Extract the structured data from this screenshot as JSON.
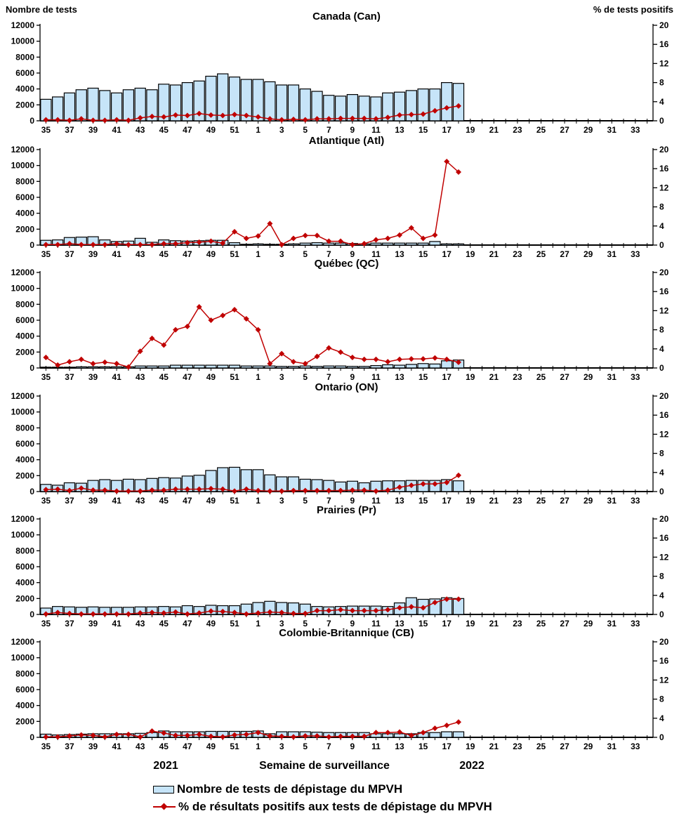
{
  "page": {
    "left_axis_title": "Nombre de tests",
    "right_axis_title": "% de tests positifs",
    "x_axis_title": "Semaine de surveillance",
    "year_left": "2021",
    "year_right": "2022",
    "legend": {
      "bar_label": "Nombre de tests de dépistage du MPVH",
      "line_label": "% de résultats positifs aux tests de dépistage du MPVH"
    }
  },
  "chart_data": {
    "type": "combo",
    "layout": "6 stacked small-multiple panels, bars on left axis + line with diamond markers on right axis",
    "xlabel": "Semaine de surveillance",
    "ylabel_left": "Nombre de tests",
    "ylabel_right": "% de tests positifs",
    "ylim_left": [
      0,
      12000
    ],
    "ylim_right": [
      0,
      20
    ],
    "yticks_left": [
      0,
      2000,
      4000,
      6000,
      8000,
      10000,
      12000
    ],
    "yticks_right": [
      0,
      4,
      8,
      12,
      16,
      20
    ],
    "grid": false,
    "legend_position": "bottom",
    "colors": {
      "bar_fill": "#C6E4F8",
      "bar_border": "#000000",
      "line": "#C00000",
      "text": "#000000"
    },
    "categories": [
      "35",
      "36",
      "37",
      "38",
      "39",
      "40",
      "41",
      "42",
      "43",
      "44",
      "45",
      "46",
      "47",
      "48",
      "49",
      "50",
      "51",
      "52",
      "1",
      "2",
      "3",
      "4",
      "5",
      "6",
      "7",
      "8",
      "9",
      "10",
      "11",
      "12",
      "13",
      "14",
      "15",
      "16",
      "17",
      "18",
      "19",
      "20",
      "21",
      "22",
      "23",
      "24",
      "25",
      "26",
      "27",
      "28",
      "29",
      "30",
      "31",
      "32",
      "33",
      "34"
    ],
    "x_note": "weeks 35-52 are 2021, weeks 1-34 are 2022; data ends at week 18 of 2022",
    "series_labels": {
      "bars": "Nombre de tests de dépistage du MPVH",
      "line": "% de résultats positifs aux tests de dépistage du MPVH"
    },
    "panels": [
      {
        "title": "Canada (Can)",
        "bars": [
          2700,
          3000,
          3500,
          3900,
          4100,
          3800,
          3500,
          3900,
          4100,
          3900,
          4600,
          4500,
          4800,
          5000,
          5600,
          5900,
          5500,
          5200,
          5200,
          4900,
          4500,
          4500,
          4000,
          3700,
          3200,
          3100,
          3300,
          3100,
          3000,
          3500,
          3600,
          3800,
          4000,
          4000,
          4800,
          4700
        ],
        "line": [
          0.2,
          0.2,
          0.1,
          0.4,
          0.1,
          0.1,
          0.2,
          0.1,
          0.6,
          0.9,
          0.8,
          1.2,
          1.1,
          1.5,
          1.2,
          1.1,
          1.3,
          1.1,
          0.8,
          0.4,
          0.2,
          0.3,
          0.2,
          0.4,
          0.4,
          0.5,
          0.5,
          0.5,
          0.4,
          0.7,
          1.2,
          1.3,
          1.4,
          2.1,
          2.7,
          3.1
        ]
      },
      {
        "title": "Atlantique (Atl)",
        "bars": [
          600,
          650,
          950,
          1000,
          1050,
          650,
          450,
          500,
          850,
          350,
          650,
          550,
          500,
          550,
          600,
          600,
          300,
          100,
          150,
          100,
          100,
          150,
          250,
          300,
          250,
          250,
          200,
          150,
          250,
          250,
          250,
          250,
          250,
          450,
          150,
          150
        ],
        "line": [
          0.1,
          0.1,
          0.3,
          0.1,
          0.1,
          0.1,
          0.3,
          0.1,
          0.1,
          0.1,
          0.3,
          0.3,
          0.5,
          0.6,
          0.8,
          0.4,
          2.8,
          1.4,
          1.9,
          4.5,
          0.1,
          1.4,
          2.0,
          2.0,
          0.8,
          0.8,
          0.1,
          0.3,
          1.1,
          1.4,
          2.1,
          3.6,
          1.4,
          2.1,
          17.5,
          15.3
        ]
      },
      {
        "title": "Québec (QC)",
        "bars": [
          100,
          100,
          100,
          150,
          150,
          150,
          150,
          150,
          250,
          250,
          250,
          350,
          350,
          350,
          350,
          350,
          350,
          250,
          250,
          250,
          200,
          200,
          250,
          200,
          250,
          250,
          200,
          200,
          300,
          400,
          350,
          450,
          550,
          500,
          900,
          1000
        ],
        "line": [
          2.2,
          0.6,
          1.3,
          1.8,
          0.9,
          1.2,
          0.9,
          0.2,
          3.5,
          6.2,
          4.8,
          8.0,
          8.7,
          12.8,
          10.0,
          11.0,
          12.2,
          10.3,
          8.0,
          0.9,
          3.0,
          1.3,
          0.9,
          2.4,
          4.2,
          3.3,
          2.2,
          1.8,
          1.8,
          1.3,
          1.8,
          1.9,
          1.9,
          2.1,
          1.8,
          1.2
        ]
      },
      {
        "title": "Ontario (ON)",
        "bars": [
          900,
          800,
          1100,
          1050,
          1400,
          1500,
          1400,
          1550,
          1500,
          1650,
          1750,
          1700,
          1950,
          2050,
          2650,
          3000,
          3050,
          2750,
          2750,
          2100,
          1850,
          1850,
          1550,
          1500,
          1400,
          1200,
          1300,
          1100,
          1300,
          1350,
          1350,
          1400,
          1400,
          1400,
          1500,
          1350
        ],
        "line": [
          0.4,
          0.5,
          0.2,
          0.7,
          0.3,
          0.3,
          0.1,
          0.1,
          0.1,
          0.3,
          0.3,
          0.5,
          0.5,
          0.5,
          0.6,
          0.5,
          0.1,
          0.5,
          0.2,
          0.1,
          0.1,
          0.2,
          0.2,
          0.2,
          0.2,
          0.2,
          0.3,
          0.3,
          0.1,
          0.3,
          0.9,
          1.3,
          1.6,
          1.6,
          1.9,
          3.4
        ]
      },
      {
        "title": "Prairies (Pr)",
        "bars": [
          800,
          1000,
          950,
          900,
          950,
          900,
          900,
          900,
          950,
          950,
          1000,
          950,
          1100,
          1000,
          1150,
          1100,
          1100,
          1300,
          1500,
          1650,
          1500,
          1450,
          1300,
          1000,
          950,
          1000,
          1050,
          1050,
          1050,
          1000,
          1450,
          2100,
          1900,
          1950,
          2100,
          2000
        ],
        "line": [
          0.1,
          0.4,
          0.2,
          0.1,
          0.1,
          0.1,
          0.1,
          0.1,
          0.3,
          0.4,
          0.3,
          0.5,
          0.1,
          0.3,
          0.7,
          0.6,
          0.4,
          0.1,
          0.3,
          0.5,
          0.4,
          0.2,
          0.2,
          0.8,
          0.8,
          1.0,
          0.8,
          0.8,
          0.8,
          1.0,
          1.4,
          1.6,
          1.4,
          2.5,
          3.2,
          3.2
        ]
      },
      {
        "title": "Colombie-Britannique (CB)",
        "bars": [
          400,
          300,
          350,
          400,
          450,
          450,
          450,
          450,
          500,
          600,
          800,
          700,
          700,
          700,
          750,
          750,
          750,
          750,
          800,
          450,
          700,
          700,
          700,
          650,
          600,
          600,
          600,
          600,
          450,
          450,
          450,
          450,
          600,
          600,
          700,
          700
        ],
        "line": [
          0.1,
          0.1,
          0.3,
          0.5,
          0.4,
          0.1,
          0.6,
          0.6,
          0.1,
          1.3,
          0.9,
          0.4,
          0.4,
          0.6,
          0.2,
          0.1,
          0.5,
          0.6,
          1.0,
          0.3,
          0.2,
          0.1,
          0.3,
          0.3,
          0.1,
          0.2,
          0.2,
          0.2,
          1.0,
          1.0,
          1.1,
          0.4,
          1.0,
          1.9,
          2.5,
          3.2
        ]
      }
    ]
  }
}
